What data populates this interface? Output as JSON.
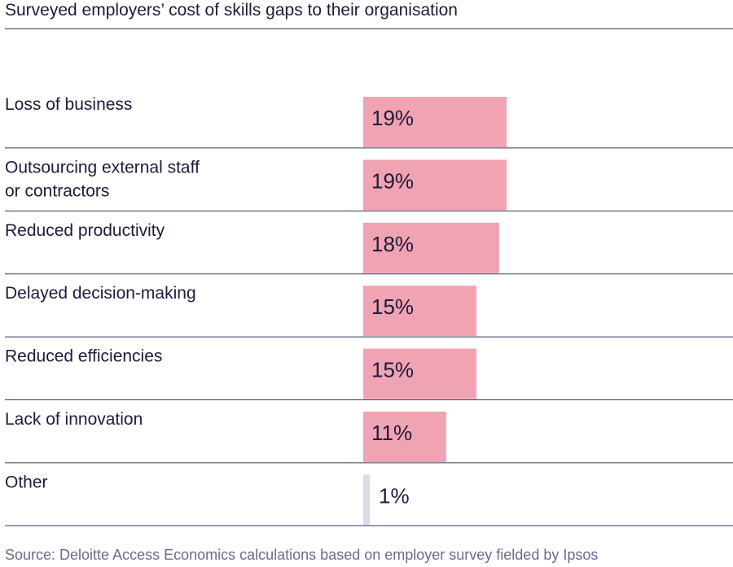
{
  "chart_data": {
    "type": "bar",
    "orientation": "horizontal",
    "title": "Surveyed employers’ cost of skills gaps to their organisation",
    "categories": [
      [
        "Loss of business"
      ],
      [
        "Outsourcing external staff",
        "or contractors"
      ],
      [
        "Reduced productivity"
      ],
      [
        "Delayed decision-making"
      ],
      [
        "Reduced efficiencies"
      ],
      [
        "Lack of innovation"
      ],
      [
        "Other"
      ]
    ],
    "values": [
      19,
      19,
      18,
      15,
      15,
      11,
      1
    ],
    "value_labels": [
      "19%",
      "19%",
      "18%",
      "15%",
      "15%",
      "11%",
      "1%"
    ],
    "unit": "%",
    "xlim": [
      0,
      49
    ],
    "grid": false,
    "legend": "none",
    "colors": {
      "bar": "#f0a3b2",
      "bar_small": "#dcdbe6",
      "rule": "#3a3760",
      "text": "#1e1b3a",
      "source": "#6b6a8e"
    }
  },
  "source": "Source: Deloitte Access Economics calculations based on employer survey fielded by Ipsos"
}
